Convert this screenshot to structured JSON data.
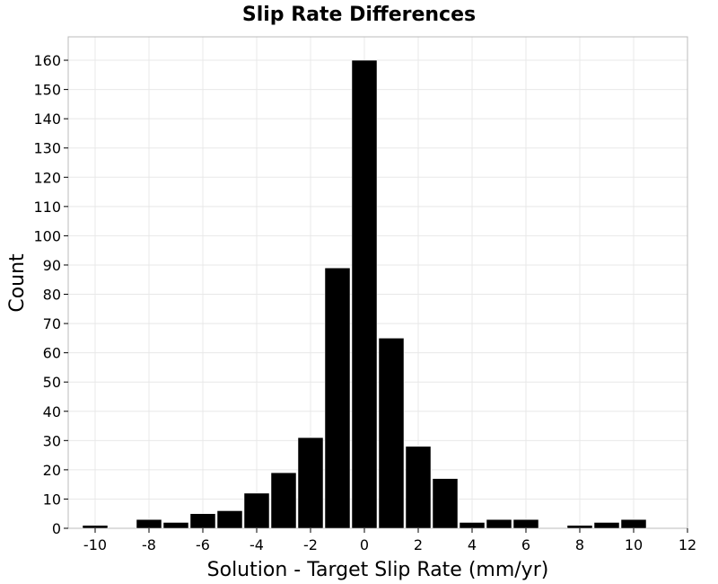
{
  "chart_data": {
    "type": "bar",
    "title": "Slip Rate Differences",
    "xlabel": "Solution - Target Slip Rate (mm/yr)",
    "ylabel": "Count",
    "xlim": [
      -11,
      12
    ],
    "ylim": [
      0,
      168
    ],
    "xticks": [
      -10,
      -8,
      -6,
      -4,
      -2,
      0,
      2,
      4,
      6,
      8,
      10,
      12
    ],
    "yticks": [
      0,
      10,
      20,
      30,
      40,
      50,
      60,
      70,
      80,
      90,
      100,
      110,
      120,
      130,
      140,
      150,
      160
    ],
    "grid": true,
    "bin_width": 1,
    "bins": [
      {
        "x_center": -10,
        "count": 1
      },
      {
        "x_center": -8,
        "count": 3
      },
      {
        "x_center": -7,
        "count": 2
      },
      {
        "x_center": -6,
        "count": 5
      },
      {
        "x_center": -5,
        "count": 6
      },
      {
        "x_center": -4,
        "count": 12
      },
      {
        "x_center": -3,
        "count": 19
      },
      {
        "x_center": -2,
        "count": 31
      },
      {
        "x_center": -1,
        "count": 89
      },
      {
        "x_center": 0,
        "count": 160
      },
      {
        "x_center": 1,
        "count": 65
      },
      {
        "x_center": 2,
        "count": 28
      },
      {
        "x_center": 3,
        "count": 17
      },
      {
        "x_center": 4,
        "count": 2
      },
      {
        "x_center": 5,
        "count": 3
      },
      {
        "x_center": 6,
        "count": 3
      },
      {
        "x_center": 8,
        "count": 1
      },
      {
        "x_center": 9,
        "count": 2
      },
      {
        "x_center": 10,
        "count": 3
      }
    ],
    "colors": {
      "bar": "#000000",
      "grid": "#e8e8e8",
      "frame": "#bbbbbb"
    }
  }
}
